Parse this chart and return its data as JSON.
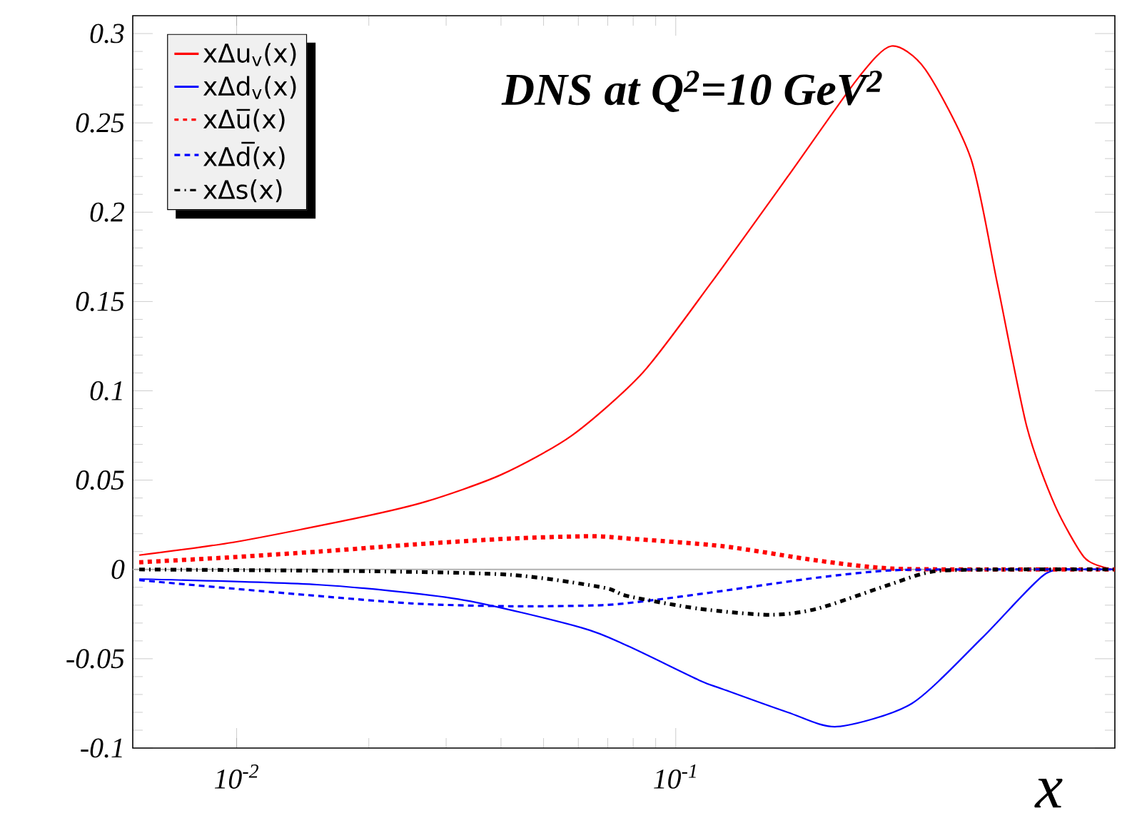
{
  "chart_data": {
    "type": "line",
    "title": "DNS at Q$^{2}$=10 GeV$^{2}$",
    "xlabel": "x",
    "log": "x",
    "xlim": [
      0.0058,
      1
    ],
    "ylim": [
      -0.1,
      0.31
    ],
    "xticks": [
      {
        "value": 0.01,
        "label": "10$^{-2}$"
      },
      {
        "value": 0.1,
        "label": "10$^{-1}$"
      }
    ],
    "yticks": [
      -0.1,
      -0.05,
      0,
      0.05,
      0.1,
      0.15,
      0.2,
      0.25,
      0.3
    ],
    "legend": "top left",
    "grid": false,
    "ref_lines": [
      {
        "axis": "y",
        "value": 0,
        "color": "#b0b0b0"
      }
    ],
    "series": [
      {
        "name": "xΔu$_{v}$(x)",
        "color": "#ff0000",
        "line_style": "solid",
        "x": [
          0.006,
          0.01,
          0.019,
          0.027,
          0.04,
          0.058,
          0.084,
          0.12,
          0.18,
          0.26,
          0.31,
          0.37,
          0.47,
          0.54,
          0.63,
          0.73,
          0.85,
          0.95,
          1
        ],
        "values": [
          0.008,
          0.0155,
          0.029,
          0.038,
          0.053,
          0.075,
          0.11,
          0.16,
          0.22,
          0.275,
          0.293,
          0.28,
          0.23,
          0.16,
          0.08,
          0.036,
          0.007,
          0.001,
          0
        ]
      },
      {
        "name": "xΔd$_{v}$(x)",
        "color": "#0000ff",
        "line_style": "solid",
        "x": [
          0.006,
          0.0154,
          0.032,
          0.061,
          0.078,
          0.113,
          0.128,
          0.18,
          0.233,
          0.345,
          0.5,
          0.69,
          0.83,
          1
        ],
        "values": [
          -0.0054,
          -0.0086,
          -0.0166,
          -0.0326,
          -0.043,
          -0.062,
          -0.067,
          -0.08,
          -0.088,
          -0.075,
          -0.038,
          -0.003,
          0,
          0
        ]
      },
      {
        "name": "xΔu̅(x)",
        "color": "#ff0000",
        "line_style": "dotted",
        "x": [
          0.006,
          0.0094,
          0.0154,
          0.0254,
          0.042,
          0.064,
          0.078,
          0.128,
          0.21,
          0.31,
          0.54,
          1
        ],
        "values": [
          0.004,
          0.0066,
          0.01,
          0.014,
          0.0173,
          0.0186,
          0.0173,
          0.013,
          0.005,
          0.0005,
          0,
          0
        ]
      },
      {
        "name": "xΔd̅(x)",
        "color": "#0000ff",
        "line_style": "dashed",
        "x": [
          0.006,
          0.012,
          0.025,
          0.042,
          0.068,
          0.09,
          0.128,
          0.21,
          0.31,
          0.5,
          1
        ],
        "values": [
          -0.006,
          -0.0126,
          -0.019,
          -0.0206,
          -0.02,
          -0.017,
          -0.012,
          -0.0046,
          -0.0005,
          0,
          0
        ]
      },
      {
        "name": "xΔs(x)",
        "color": "#000000",
        "line_style": "dashdot",
        "x": [
          0.006,
          0.02,
          0.042,
          0.068,
          0.078,
          0.113,
          0.164,
          0.21,
          0.306,
          0.39,
          0.6,
          1
        ],
        "values": [
          0,
          -0.001,
          -0.003,
          -0.01,
          -0.015,
          -0.022,
          -0.0254,
          -0.022,
          -0.0086,
          -0.001,
          0,
          0
        ]
      }
    ]
  }
}
